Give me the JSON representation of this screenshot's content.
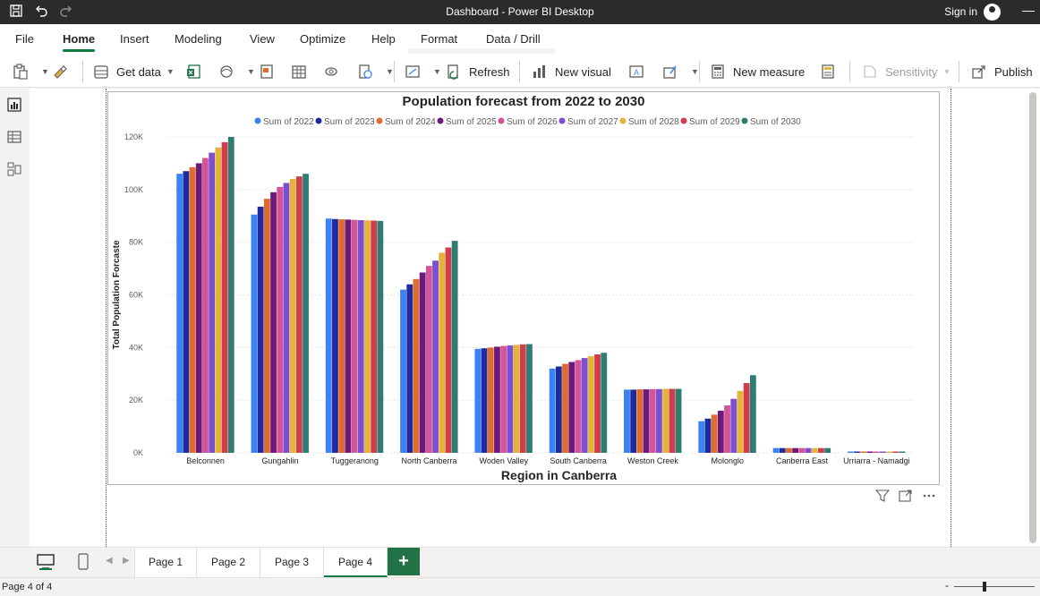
{
  "window": {
    "title": "Dashboard - Power BI Desktop",
    "sign_in": "Sign in"
  },
  "menu": [
    "File",
    "Home",
    "Insert",
    "Modeling",
    "View",
    "Optimize",
    "Help",
    "Format",
    "Data / Drill"
  ],
  "ribbon": {
    "get_data": "Get data",
    "refresh": "Refresh",
    "new_visual": "New visual",
    "new_measure": "New measure",
    "sensitivity": "Sensitivity",
    "publish": "Publish"
  },
  "pages": [
    "Page 1",
    "Page 2",
    "Page 3",
    "Page 4"
  ],
  "active_page": "Page 4",
  "status": {
    "page_indicator": "Page 4 of 4"
  },
  "colors": {
    "accent": "#107c41",
    "titlebar": "#2b2b2b"
  },
  "icons": [
    "save-icon",
    "undo-icon",
    "redo-icon",
    "paste-icon",
    "format-painter-icon",
    "database-icon",
    "excel-icon",
    "onelake-icon",
    "sql-icon",
    "table-icon",
    "dataverse-icon",
    "recent-sources-icon",
    "transform-icon",
    "refresh-icon",
    "new-visual-icon",
    "text-box-icon",
    "more-visuals-icon",
    "new-measure-icon",
    "quick-measure-icon",
    "sensitivity-icon",
    "publish-icon",
    "report-view-icon",
    "table-view-icon",
    "model-view-icon",
    "filter-icon",
    "focus-mode-icon",
    "more-options-icon",
    "desktop-layout-icon",
    "mobile-layout-icon",
    "add-page-icon"
  ],
  "chart_data": {
    "type": "bar",
    "title": "Population forecast from 2022 to 2030",
    "xlabel": "Region in Canberra",
    "ylabel": "Total Population Forcaste",
    "ylim": [
      0,
      120000
    ],
    "yticks": [
      "0K",
      "20K",
      "40K",
      "60K",
      "80K",
      "100K",
      "120K"
    ],
    "grid": true,
    "legend_position": "top-center",
    "categories": [
      "Belconnen",
      "Gungahlin",
      "Tuggeranong",
      "North Canberra",
      "Woden Valley",
      "South Canberra",
      "Weston Creek",
      "Molonglo",
      "Canberra East",
      "Urriarra - Namadgi"
    ],
    "series": [
      {
        "name": "Sum of 2022",
        "color": "#3b82f6",
        "values": [
          106000,
          90500,
          89000,
          62000,
          39500,
          32000,
          24000,
          12000,
          1800,
          500
        ]
      },
      {
        "name": "Sum of 2023",
        "color": "#1f2a9c",
        "values": [
          107000,
          93500,
          88800,
          64000,
          39700,
          32800,
          24000,
          13000,
          1800,
          500
        ]
      },
      {
        "name": "Sum of 2024",
        "color": "#e06b2f",
        "values": [
          108500,
          96500,
          88700,
          66000,
          40000,
          33800,
          24100,
          14500,
          1800,
          500
        ]
      },
      {
        "name": "Sum of 2025",
        "color": "#6b1a7a",
        "values": [
          110000,
          99000,
          88600,
          68500,
          40300,
          34500,
          24100,
          16000,
          1800,
          500
        ]
      },
      {
        "name": "Sum of 2026",
        "color": "#d4549a",
        "values": [
          112000,
          101000,
          88500,
          71000,
          40600,
          35200,
          24200,
          18000,
          1800,
          500
        ]
      },
      {
        "name": "Sum of 2027",
        "color": "#7b4fd0",
        "values": [
          114000,
          102500,
          88400,
          73000,
          40800,
          36000,
          24200,
          20500,
          1800,
          500
        ]
      },
      {
        "name": "Sum of 2028",
        "color": "#e3b33b",
        "values": [
          116000,
          104000,
          88300,
          76000,
          41000,
          36700,
          24300,
          23500,
          1800,
          500
        ]
      },
      {
        "name": "Sum of 2029",
        "color": "#cf3e4a",
        "values": [
          118000,
          105000,
          88200,
          78000,
          41200,
          37400,
          24300,
          26500,
          1800,
          500
        ]
      },
      {
        "name": "Sum of 2030",
        "color": "#2f7d72",
        "values": [
          120000,
          106000,
          88100,
          80500,
          41300,
          38000,
          24300,
          29500,
          1800,
          500
        ]
      }
    ]
  }
}
